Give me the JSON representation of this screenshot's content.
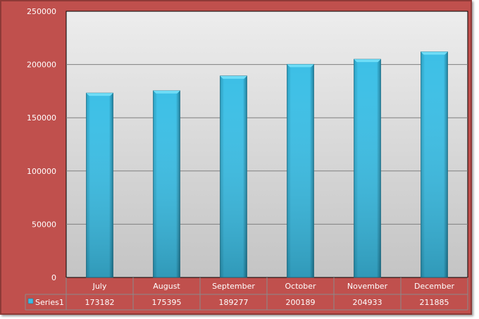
{
  "chart_data": {
    "type": "bar",
    "categories": [
      "July",
      "August",
      "September",
      "October",
      "November",
      "December"
    ],
    "series": [
      {
        "name": "Series1",
        "values": [
          173182,
          175395,
          189277,
          200189,
          204933,
          211885
        ]
      }
    ],
    "ylim": [
      0,
      250000
    ],
    "yticks": [
      0,
      50000,
      100000,
      150000,
      200000,
      250000
    ],
    "grid": true,
    "data_table": true,
    "colors": {
      "frame": "#C0504D",
      "bar": "#3BBCE2",
      "plot_bg": "#E8E8E8",
      "grid": "#808080"
    }
  }
}
